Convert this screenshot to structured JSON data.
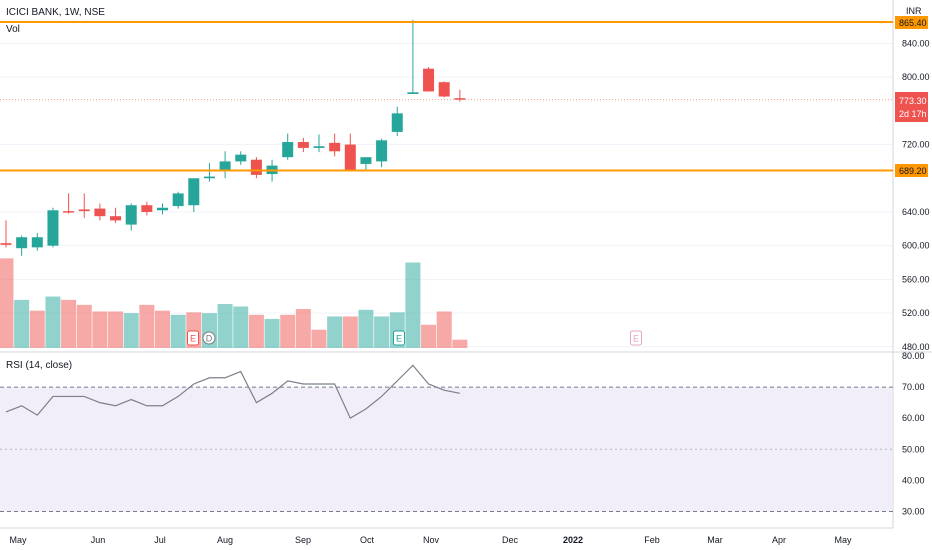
{
  "header": {
    "symbol_title": "ICICI BANK, 1W, NSE",
    "volume_label": "Vol",
    "rsi_label": "RSI (14, close)",
    "currency": "INR"
  },
  "price_tags": {
    "resistance": "865.40",
    "support": "689.20",
    "last_price": "773.30",
    "countdown": "2d 17h"
  },
  "colors": {
    "up": "#26a69a",
    "down": "#ef5350",
    "level_line": "#ff9800",
    "rsi_line": "#7e7e8c",
    "rsi_band": "#ede7f6"
  },
  "chart_data": [
    {
      "type": "candlestick",
      "title": "ICICI BANK, 1W, NSE",
      "ylim": [
        470,
        875
      ],
      "y_ticks": [
        "840.00",
        "800.00",
        "720.00",
        "640.00",
        "600.00",
        "560.00",
        "520.00",
        "480.00"
      ],
      "x_ticks": [
        "May",
        "Jun",
        "Jul",
        "Aug",
        "Sep",
        "Oct",
        "Nov",
        "Dec",
        "2022",
        "Feb",
        "Mar",
        "Apr",
        "May"
      ],
      "levels": [
        865.4,
        689.2
      ],
      "last_price": 773.3,
      "candles": [
        {
          "open": 603,
          "high": 630,
          "low": 598,
          "close": 601
        },
        {
          "open": 597,
          "high": 612,
          "low": 588,
          "close": 610
        },
        {
          "open": 598,
          "high": 615,
          "low": 594,
          "close": 610
        },
        {
          "open": 600,
          "high": 645,
          "low": 598,
          "close": 642
        },
        {
          "open": 641,
          "high": 662,
          "low": 638,
          "close": 640
        },
        {
          "open": 643,
          "high": 662,
          "low": 633,
          "close": 641
        },
        {
          "open": 644,
          "high": 650,
          "low": 630,
          "close": 635
        },
        {
          "open": 635,
          "high": 645,
          "low": 627,
          "close": 630
        },
        {
          "open": 625,
          "high": 650,
          "low": 618,
          "close": 648
        },
        {
          "open": 648,
          "high": 652,
          "low": 636,
          "close": 640
        },
        {
          "open": 642,
          "high": 650,
          "low": 637,
          "close": 645
        },
        {
          "open": 647,
          "high": 664,
          "low": 644,
          "close": 662
        },
        {
          "open": 648,
          "high": 678,
          "low": 640,
          "close": 680
        },
        {
          "open": 680,
          "high": 698,
          "low": 676,
          "close": 682
        },
        {
          "open": 690,
          "high": 712,
          "low": 680,
          "close": 700
        },
        {
          "open": 700,
          "high": 712,
          "low": 696,
          "close": 708
        },
        {
          "open": 702,
          "high": 705,
          "low": 680,
          "close": 684
        },
        {
          "open": 685,
          "high": 702,
          "low": 676,
          "close": 695
        },
        {
          "open": 705,
          "high": 733,
          "low": 702,
          "close": 723
        },
        {
          "open": 723,
          "high": 728,
          "low": 711,
          "close": 716
        },
        {
          "open": 716,
          "high": 732,
          "low": 711,
          "close": 718
        },
        {
          "open": 722,
          "high": 733,
          "low": 706,
          "close": 712
        },
        {
          "open": 720,
          "high": 733,
          "low": 690,
          "close": 690
        },
        {
          "open": 697,
          "high": 704,
          "low": 690,
          "close": 705
        },
        {
          "open": 700,
          "high": 727,
          "low": 693,
          "close": 725
        },
        {
          "open": 735,
          "high": 765,
          "low": 730,
          "close": 757
        },
        {
          "open": 780,
          "high": 868,
          "low": 780,
          "close": 782
        },
        {
          "open": 810,
          "high": 812,
          "low": 783,
          "close": 783
        },
        {
          "open": 794,
          "high": 795,
          "low": 776,
          "close": 777
        },
        {
          "open": 775,
          "high": 785,
          "low": 771,
          "close": 773.3
        }
      ]
    },
    {
      "type": "bar",
      "title": "Vol",
      "values": [
        108,
        58,
        45,
        62,
        58,
        52,
        44,
        44,
        42,
        52,
        45,
        40,
        43,
        42,
        53,
        50,
        40,
        35,
        40,
        47,
        22,
        38,
        38,
        46,
        38,
        43,
        103,
        28,
        44,
        10
      ],
      "colors": [
        "down",
        "up",
        "down",
        "up",
        "down",
        "down",
        "down",
        "down",
        "up",
        "down",
        "down",
        "up",
        "down",
        "up",
        "up",
        "up",
        "down",
        "up",
        "down",
        "down",
        "down",
        "up",
        "down",
        "up",
        "up",
        "up",
        "up",
        "down",
        "down",
        "down"
      ]
    },
    {
      "type": "line",
      "title": "RSI (14, close)",
      "ylim": [
        25,
        82
      ],
      "y_ticks": [
        "80.00",
        "70.00",
        "60.00",
        "50.00",
        "40.00",
        "30.00"
      ],
      "band": [
        30,
        70
      ],
      "reference_level": 50,
      "values": [
        62,
        64,
        61,
        67,
        67,
        67,
        65,
        64,
        66,
        64,
        64,
        67,
        71,
        73,
        73,
        75,
        65,
        68,
        72,
        71,
        71,
        71,
        60,
        63,
        67,
        72,
        77,
        71,
        69,
        68
      ]
    }
  ],
  "events": {
    "volume_markers": [
      "E",
      "D",
      "E",
      "E"
    ]
  }
}
